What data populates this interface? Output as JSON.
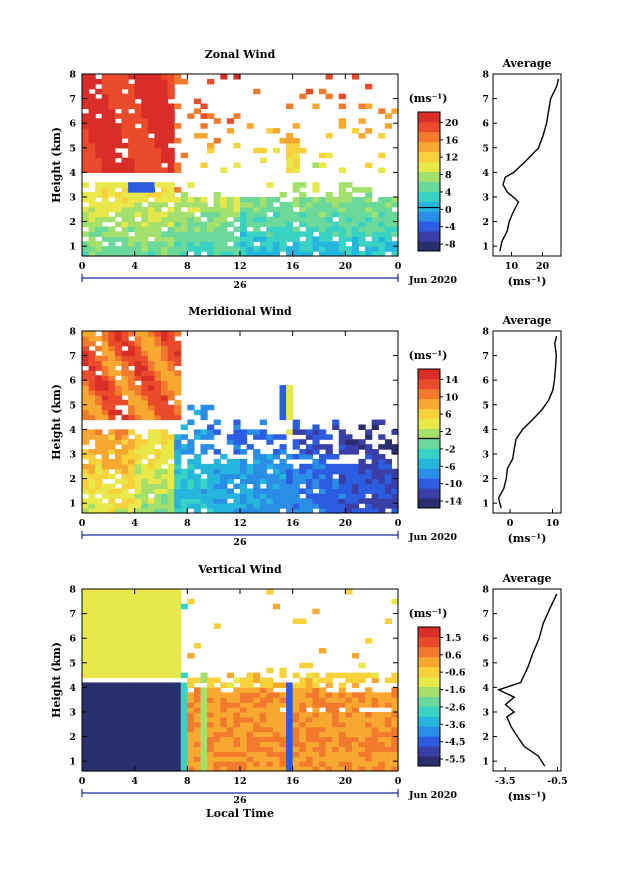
{
  "colors": {
    "palette": [
      "#2b2e6c",
      "#3a3fa8",
      "#2c5de0",
      "#2a8de6",
      "#26b6dd",
      "#3ad2c4",
      "#6ad99a",
      "#a4e06c",
      "#e8e84a",
      "#f7d23a",
      "#f7a831",
      "#f27a2d",
      "#ea4b2a",
      "#d92e28"
    ],
    "missing": "#ffffff"
  },
  "shared": {
    "xlabel": "Local Time",
    "date_label": "Jun 2020",
    "day_label": "26",
    "ylabel": "Height (km)"
  },
  "chart_data": [
    {
      "type": "heatmap",
      "title": "Zonal Wind",
      "xlabel": "",
      "ylabel": "Height (km)",
      "x_ticks": [
        "0",
        "4",
        "8",
        "12",
        "16",
        "20",
        "0"
      ],
      "y_ticks": [
        "1",
        "2",
        "3",
        "4",
        "5",
        "6",
        "7",
        "8"
      ],
      "xlim": [
        0,
        24
      ],
      "ylim": [
        0.6,
        8
      ],
      "colorbar": {
        "unit": "(ms⁻¹)",
        "ticks": [
          "20",
          "16",
          "12",
          "8",
          "4",
          "0",
          "-4",
          "-8"
        ],
        "range": [
          -10,
          22
        ],
        "zero_level": 0
      },
      "average": {
        "title": "Average",
        "xlabel": "(ms⁻¹)",
        "x_ticks": [
          "10",
          "20"
        ],
        "xlim": [
          4,
          26
        ],
        "heights": [
          0.8,
          1.2,
          1.6,
          2.0,
          2.4,
          2.8,
          3.0,
          3.2,
          3.5,
          3.8,
          4.0,
          4.5,
          5.0,
          5.5,
          6.0,
          6.5,
          7.0,
          7.5,
          7.8
        ],
        "values": [
          6.5,
          7.2,
          8.5,
          9.5,
          10.5,
          12.0,
          10.5,
          8.5,
          7.5,
          7.8,
          10.5,
          15.0,
          18.5,
          20.5,
          21.5,
          22.0,
          23.0,
          24.5,
          25.5
        ]
      }
    },
    {
      "type": "heatmap",
      "title": "Meridional Wind",
      "xlabel": "",
      "ylabel": "Height (km)",
      "x_ticks": [
        "0",
        "4",
        "8",
        "12",
        "16",
        "20",
        "0"
      ],
      "y_ticks": [
        "1",
        "2",
        "3",
        "4",
        "5",
        "6",
        "7",
        "8"
      ],
      "xlim": [
        0,
        24
      ],
      "ylim": [
        0.6,
        8
      ],
      "colorbar": {
        "unit": "(ms⁻¹)",
        "ticks": [
          "14",
          "10",
          "6",
          "2",
          "-2",
          "-6",
          "-10",
          "-14"
        ],
        "range": [
          -16,
          16
        ],
        "zero_level": 0
      },
      "average": {
        "title": "Average",
        "xlabel": "(ms⁻¹)",
        "x_ticks": [
          "0",
          "10"
        ],
        "xlim": [
          -4,
          12
        ],
        "heights": [
          0.8,
          1.2,
          1.6,
          2.0,
          2.4,
          2.8,
          3.2,
          3.6,
          4.0,
          4.4,
          4.8,
          5.2,
          5.6,
          6.0,
          6.5,
          7.0,
          7.5,
          7.8
        ],
        "values": [
          -2.0,
          -2.5,
          -1.5,
          -1.0,
          -0.5,
          0.5,
          1.0,
          1.5,
          3.0,
          5.5,
          7.5,
          9.0,
          10.0,
          10.5,
          10.5,
          11.0,
          10.5,
          11.0
        ]
      }
    },
    {
      "type": "heatmap",
      "title": "Vertical Wind",
      "xlabel": "Local Time",
      "ylabel": "Height (km)",
      "x_ticks": [
        "0",
        "4",
        "8",
        "12",
        "16",
        "20",
        "0"
      ],
      "y_ticks": [
        "1",
        "2",
        "3",
        "4",
        "5",
        "6",
        "7",
        "8"
      ],
      "xlim": [
        0,
        24
      ],
      "ylim": [
        0.6,
        8
      ],
      "colorbar": {
        "unit": "(ms⁻¹)",
        "ticks": [
          "1.5",
          "0.6",
          "-0.6",
          "-1.6",
          "-2.6",
          "-3.6",
          "-4.5",
          "-5.5"
        ],
        "range": [
          -6,
          2
        ]
      },
      "average": {
        "title": "Average",
        "xlabel": "(ms⁻¹)",
        "x_ticks": [
          "-3.5",
          "-0.5"
        ],
        "xlim": [
          -4.2,
          -0.3
        ],
        "heights": [
          0.8,
          1.2,
          1.6,
          2.0,
          2.4,
          2.8,
          3.0,
          3.3,
          3.6,
          3.9,
          4.2,
          4.8,
          5.4,
          6.0,
          6.6,
          7.2,
          7.8
        ],
        "values": [
          -1.2,
          -1.6,
          -2.4,
          -2.8,
          -3.2,
          -3.4,
          -3.0,
          -3.5,
          -3.0,
          -3.9,
          -2.6,
          -2.2,
          -1.9,
          -1.6,
          -1.3,
          -0.9,
          -0.5
        ]
      }
    }
  ]
}
